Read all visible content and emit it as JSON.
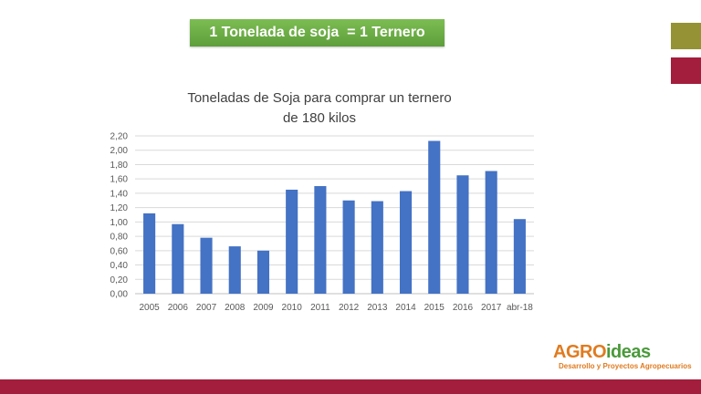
{
  "banner": {
    "text": "1 Tonelada de soja  = 1 Ternero"
  },
  "colors": {
    "banner": "#6aa944",
    "olive": "#949234",
    "brand_red": "#a31e3c",
    "bar": "#4472c4"
  },
  "logo": {
    "main_part1": "AGRO",
    "main_part2": "ideas",
    "tagline": "Desarrollo y Proyectos Agropecuarios"
  },
  "chart_data": {
    "type": "bar",
    "title_line1": "Toneladas de Soja para comprar un ternero",
    "title_line2": "de 180 kilos",
    "categories": [
      "2005",
      "2006",
      "2007",
      "2008",
      "2009",
      "2010",
      "2011",
      "2012",
      "2013",
      "2014",
      "2015",
      "2016",
      "2017",
      "abr-18"
    ],
    "values": [
      1.12,
      0.97,
      0.78,
      0.66,
      0.6,
      1.45,
      1.5,
      1.3,
      1.29,
      1.43,
      2.13,
      1.65,
      1.71,
      1.04
    ],
    "ylim": [
      0,
      2.2
    ],
    "yticks": [
      "0,00",
      "0,20",
      "0,40",
      "0,60",
      "0,80",
      "1,00",
      "1,20",
      "1,40",
      "1,60",
      "1,80",
      "2,00",
      "2,20"
    ],
    "grid": true
  }
}
